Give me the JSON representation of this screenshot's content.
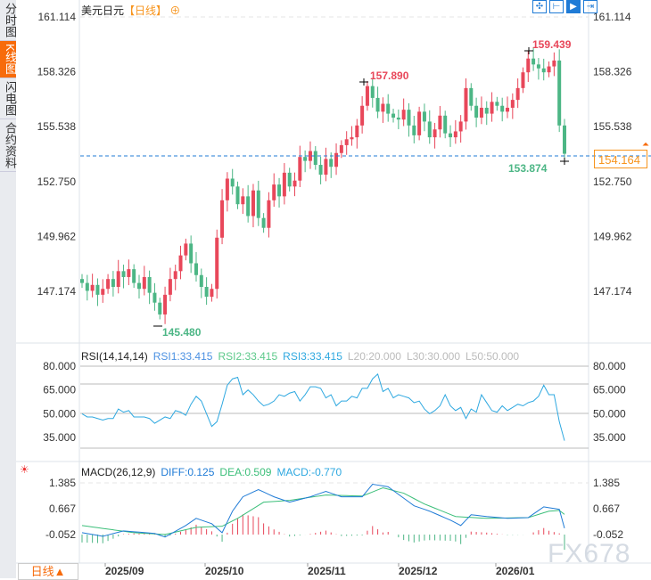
{
  "sidebar": {
    "tabs": [
      "分时图",
      "K线图",
      "闪电图",
      "合约资料"
    ]
  },
  "header": {
    "symbol": "美元日元",
    "period": "【日线】",
    "add_icon": "⊕"
  },
  "toolbar": [
    "crosshair-icon",
    "zoom-range-icon",
    "play-icon",
    "goto-end-icon"
  ],
  "current_price": "154.164",
  "period_selector": "日线▲",
  "watermark": "FX678",
  "colors": {
    "up": "#e8475a",
    "down": "#4cb685",
    "diff": "#1f7bd6",
    "dea": "#3cbf7a",
    "rsi": "#2ea8e0",
    "accent": "#f76b0b"
  },
  "chart_data": [
    {
      "type": "candlestick",
      "title": "美元日元 日线",
      "y_ticks": [
        "161.114",
        "158.326",
        "155.538",
        "152.750",
        "149.962",
        "147.174"
      ],
      "ylim": [
        145.0,
        161.5
      ],
      "x_ticks": [
        "2025/09",
        "2025/10",
        "2025/11",
        "2025/12",
        "2026/01"
      ],
      "annotations": {
        "high": "159.439",
        "high2": "157.890",
        "low": "145.480",
        "recent_low": "153.874"
      },
      "closes": [
        147.6,
        147.2,
        147.5,
        147.0,
        147.3,
        147.8,
        147.4,
        148.2,
        147.9,
        148.3,
        147.6,
        147.3,
        147.9,
        147.1,
        146.6,
        146.0,
        147.0,
        147.8,
        148.2,
        149.0,
        149.6,
        148.6,
        148.0,
        147.4,
        146.9,
        147.3,
        149.9,
        151.8,
        152.9,
        152.5,
        151.6,
        152.0,
        151.0,
        152.3,
        150.9,
        150.4,
        151.8,
        152.6,
        152.0,
        153.2,
        152.5,
        152.8,
        154.0,
        153.8,
        154.3,
        153.6,
        153.1,
        153.9,
        153.5,
        154.2,
        154.6,
        154.9,
        155.0,
        155.6,
        156.6,
        157.6,
        157.0,
        156.3,
        156.7,
        156.2,
        156.0,
        155.9,
        156.4,
        155.6,
        155.1,
        156.3,
        155.8,
        155.0,
        155.4,
        156.1,
        155.2,
        155.0,
        155.3,
        155.8,
        157.5,
        156.6,
        156.0,
        156.5,
        156.2,
        156.8,
        156.6,
        156.3,
        156.5,
        156.9,
        157.5,
        158.3,
        159.0,
        158.7,
        158.5,
        158.3,
        158.6,
        158.9,
        155.6,
        154.164
      ]
    },
    {
      "type": "line",
      "title": "RSI(14,14,14)",
      "legend": [
        "RSI1:33.415",
        "RSI2:33.415",
        "RSI3:33.415",
        "L20:20.000",
        "L30:30.000",
        "L50:50.000"
      ],
      "y_ticks": [
        "80.000",
        "65.000",
        "50.000",
        "35.000"
      ],
      "ylim": [
        80,
        35
      ],
      "values": [
        50,
        48,
        48,
        47,
        46,
        47,
        47,
        53,
        51,
        52,
        48,
        48,
        48,
        47,
        44,
        46,
        48,
        47,
        52,
        51,
        49,
        56,
        61,
        58,
        50,
        42,
        45,
        56,
        68,
        72,
        73,
        62,
        65,
        62,
        58,
        55,
        56,
        58,
        62,
        61,
        63,
        64,
        58,
        62,
        67,
        67,
        66,
        60,
        62,
        55,
        58,
        58,
        61,
        60,
        66,
        66,
        72,
        75,
        64,
        66,
        60,
        62,
        61,
        60,
        57,
        58,
        53,
        50,
        52,
        55,
        62,
        55,
        52,
        54,
        47,
        53,
        51,
        62,
        57,
        52,
        51,
        55,
        52,
        54,
        56,
        55,
        57,
        58,
        61,
        68,
        62,
        62,
        45,
        33
      ]
    },
    {
      "type": "line+bar",
      "title": "MACD(26,12,9)",
      "legend": [
        "DIFF:0.125",
        "DEA:0.509",
        "MACD:-0.770"
      ],
      "y_ticks": [
        "1.385",
        "0.667",
        "-0.052"
      ],
      "ylim": [
        -0.8,
        1.5
      ],
      "diff_keypoints": [
        [
          0,
          0.0
        ],
        [
          4,
          -0.1
        ],
        [
          8,
          0.05
        ],
        [
          14,
          -0.02
        ],
        [
          16,
          -0.12
        ],
        [
          20,
          0.2
        ],
        [
          22,
          0.4
        ],
        [
          25,
          0.25
        ],
        [
          27,
          0.0
        ],
        [
          29,
          0.6
        ],
        [
          31,
          1.0
        ],
        [
          34,
          1.2
        ],
        [
          37,
          1.0
        ],
        [
          40,
          0.85
        ],
        [
          44,
          1.0
        ],
        [
          47,
          1.15
        ],
        [
          50,
          1.0
        ],
        [
          54,
          1.0
        ],
        [
          56,
          1.35
        ],
        [
          59,
          1.28
        ],
        [
          64,
          0.75
        ],
        [
          67,
          0.6
        ],
        [
          71,
          0.35
        ],
        [
          73,
          0.2
        ],
        [
          75,
          0.5
        ],
        [
          78,
          0.45
        ],
        [
          82,
          0.4
        ],
        [
          86,
          0.42
        ],
        [
          89,
          0.72
        ],
        [
          92,
          0.65
        ],
        [
          93,
          0.125
        ]
      ],
      "dea_keypoints": [
        [
          0,
          0.2
        ],
        [
          10,
          0.0
        ],
        [
          16,
          -0.05
        ],
        [
          22,
          0.15
        ],
        [
          27,
          0.18
        ],
        [
          30,
          0.4
        ],
        [
          35,
          0.85
        ],
        [
          40,
          0.9
        ],
        [
          47,
          1.05
        ],
        [
          54,
          1.02
        ],
        [
          58,
          1.25
        ],
        [
          62,
          1.1
        ],
        [
          66,
          0.8
        ],
        [
          72,
          0.45
        ],
        [
          78,
          0.4
        ],
        [
          86,
          0.42
        ],
        [
          90,
          0.6
        ],
        [
          92,
          0.62
        ],
        [
          93,
          0.509
        ]
      ]
    }
  ]
}
